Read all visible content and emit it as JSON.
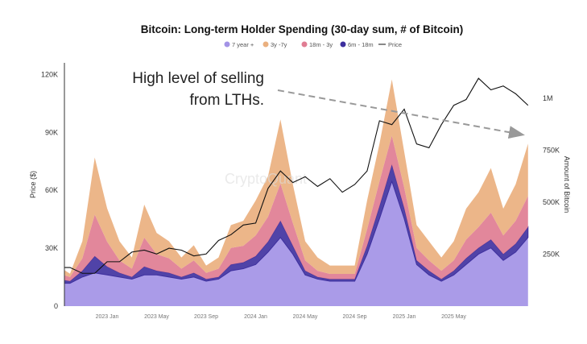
{
  "chart_data": {
    "type": "area",
    "title": "Bitcoin: Long-term Holder Spending (30-day sum, # of Bitcoin)",
    "ylabel_left": "Price ($)",
    "ylabel_right": "Amount of Bitcoin",
    "left_ticks": [
      {
        "v": 0,
        "label": "0"
      },
      {
        "v": 30000,
        "label": "30K"
      },
      {
        "v": 60000,
        "label": "60K"
      },
      {
        "v": 90000,
        "label": "90K"
      },
      {
        "v": 120000,
        "label": "120K"
      }
    ],
    "right_ticks": [
      {
        "v": 250000,
        "label": "250K"
      },
      {
        "v": 500000,
        "label": "500K"
      },
      {
        "v": 750000,
        "label": "750K"
      },
      {
        "v": 1000000,
        "label": "1M"
      }
    ],
    "x_ticks": [
      {
        "m": "2023-01",
        "label": "2023 Jan"
      },
      {
        "m": "2023-05",
        "label": "2023 May"
      },
      {
        "m": "2023-09",
        "label": "2023 Sep"
      },
      {
        "m": "2024-01",
        "label": "2024 Jan"
      },
      {
        "m": "2024-05",
        "label": "2024 May"
      },
      {
        "m": "2024-09",
        "label": "2024 Sep"
      },
      {
        "m": "2025-01",
        "label": "2025 Jan"
      },
      {
        "m": "2025-05",
        "label": "2025 May"
      }
    ],
    "left_ylim": [
      0,
      126000
    ],
    "right_ylim": [
      0,
      1170000
    ],
    "grid": false,
    "legend_position": "top",
    "stacked": true,
    "months": [
      "2022-09",
      "2022-10",
      "2022-11",
      "2022-12",
      "2023-01",
      "2023-02",
      "2023-03",
      "2023-04",
      "2023-05",
      "2023-06",
      "2023-07",
      "2023-08",
      "2023-09",
      "2023-10",
      "2023-11",
      "2023-12",
      "2024-01",
      "2024-02",
      "2024-03",
      "2024-04",
      "2024-05",
      "2024-06",
      "2024-07",
      "2024-08",
      "2024-09",
      "2024-10",
      "2024-11",
      "2024-12",
      "2025-01",
      "2025-02",
      "2025-03",
      "2025-04",
      "2025-05",
      "2025-06",
      "2025-07",
      "2025-08",
      "2025-09",
      "2025-10",
      "2025-11"
    ],
    "series": [
      {
        "name": "7 year +",
        "color": "#a393e6",
        "values": [
          110000,
          110000,
          140000,
          160000,
          150000,
          140000,
          130000,
          150000,
          150000,
          140000,
          130000,
          140000,
          120000,
          130000,
          170000,
          180000,
          200000,
          260000,
          330000,
          250000,
          150000,
          130000,
          120000,
          120000,
          120000,
          250000,
          420000,
          600000,
          420000,
          200000,
          150000,
          120000,
          150000,
          200000,
          250000,
          280000,
          220000,
          260000,
          330000
        ]
      },
      {
        "name": "6m - 18m",
        "color": "#3d2f9e",
        "values": [
          20000,
          10000,
          30000,
          80000,
          40000,
          20000,
          10000,
          40000,
          20000,
          20000,
          10000,
          20000,
          10000,
          10000,
          30000,
          30000,
          40000,
          50000,
          80000,
          40000,
          20000,
          10000,
          10000,
          10000,
          10000,
          40000,
          60000,
          80000,
          50000,
          20000,
          20000,
          10000,
          20000,
          30000,
          30000,
          40000,
          30000,
          40000,
          50000
        ]
      },
      {
        "name": "18m - 3y",
        "color": "#e07d93",
        "values": [
          30000,
          20000,
          60000,
          200000,
          120000,
          60000,
          40000,
          140000,
          80000,
          70000,
          40000,
          60000,
          30000,
          40000,
          80000,
          80000,
          100000,
          120000,
          180000,
          110000,
          50000,
          30000,
          25000,
          25000,
          25000,
          80000,
          120000,
          140000,
          100000,
          60000,
          50000,
          40000,
          50000,
          90000,
          100000,
          130000,
          90000,
          110000,
          150000
        ]
      },
      {
        "name": "3y -7y",
        "color": "#eab07f",
        "values": [
          35000,
          16000,
          82000,
          275000,
          160000,
          92000,
          54000,
          158000,
          102000,
          82000,
          54000,
          73000,
          35000,
          54000,
          110000,
          120000,
          168000,
          195000,
          308000,
          186000,
          92000,
          64000,
          40000,
          40000,
          40000,
          138000,
          181000,
          270000,
          172000,
          110000,
          92000,
          64000,
          92000,
          149000,
          167000,
          214000,
          129000,
          176000,
          251000
        ]
      }
    ],
    "price": {
      "name": "Price",
      "color": "#111111",
      "values": [
        20000,
        20000,
        17000,
        17000,
        23000,
        23000,
        28000,
        29000,
        27000,
        30000,
        29000,
        26000,
        27000,
        34000,
        37000,
        42000,
        43000,
        61000,
        70000,
        64000,
        67000,
        62000,
        66000,
        59000,
        63000,
        70000,
        96000,
        94000,
        102000,
        84000,
        82000,
        94000,
        104000,
        107000,
        118000,
        112000,
        114000,
        110000,
        104000
      ]
    },
    "annotation": "High level of selling from LTHs.",
    "annotation_lines": [
      "High level of selling",
      "from LTHs."
    ],
    "watermark": "CryptoQuant"
  }
}
